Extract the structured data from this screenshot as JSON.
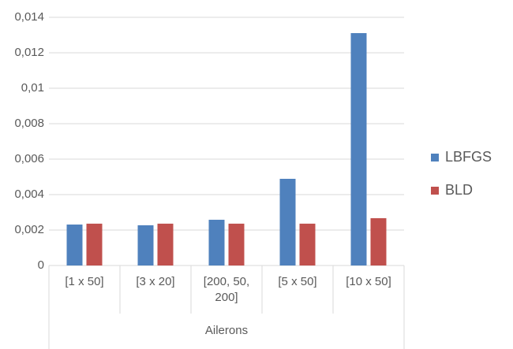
{
  "chart_data": {
    "type": "bar",
    "categories": [
      "[1 x 50]",
      "[3 x 20]",
      "[200, 50, 200]",
      "[5 x 50]",
      "[10 x 50]"
    ],
    "x_group_label": "Ailerons",
    "series": [
      {
        "name": "LBFGS",
        "color": "#4f81bd",
        "values": [
          0.00231,
          0.00227,
          0.00258,
          0.00489,
          0.01311
        ]
      },
      {
        "name": "BLD",
        "color": "#c0504d",
        "values": [
          0.00236,
          0.00236,
          0.00236,
          0.00236,
          0.00267
        ]
      }
    ],
    "ylim": [
      0,
      0.014
    ],
    "yticks": [
      0,
      {
        "value": 0.002,
        "label": "0,002"
      },
      {
        "value": 0.004,
        "label": "0,004"
      },
      {
        "value": 0.006,
        "label": "0,006"
      },
      {
        "value": 0.008,
        "label": "0,008"
      },
      {
        "value": 0.01,
        "label": "0,01"
      },
      {
        "value": 0.012,
        "label": "0,012"
      },
      {
        "value": 0.014,
        "label": "0,014"
      }
    ],
    "grid": true,
    "legend": "right"
  }
}
